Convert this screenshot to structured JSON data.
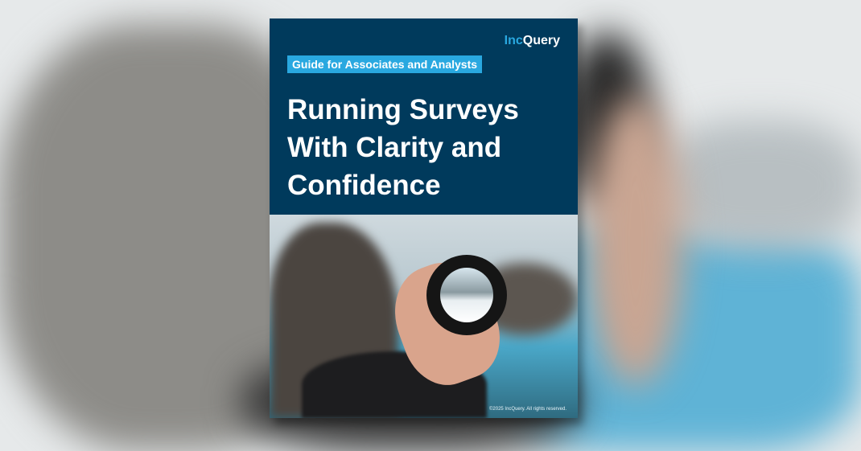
{
  "cover": {
    "brand": {
      "prefix": "Inc",
      "suffix": "Query"
    },
    "tag": "Guide for Associates and Analysts",
    "title": "Running Surveys With Clarity and Confidence",
    "copyright": "©2025 IncQuery. All rights reserved."
  },
  "colors": {
    "navy": "#003a5c",
    "accent": "#29a8e0"
  }
}
